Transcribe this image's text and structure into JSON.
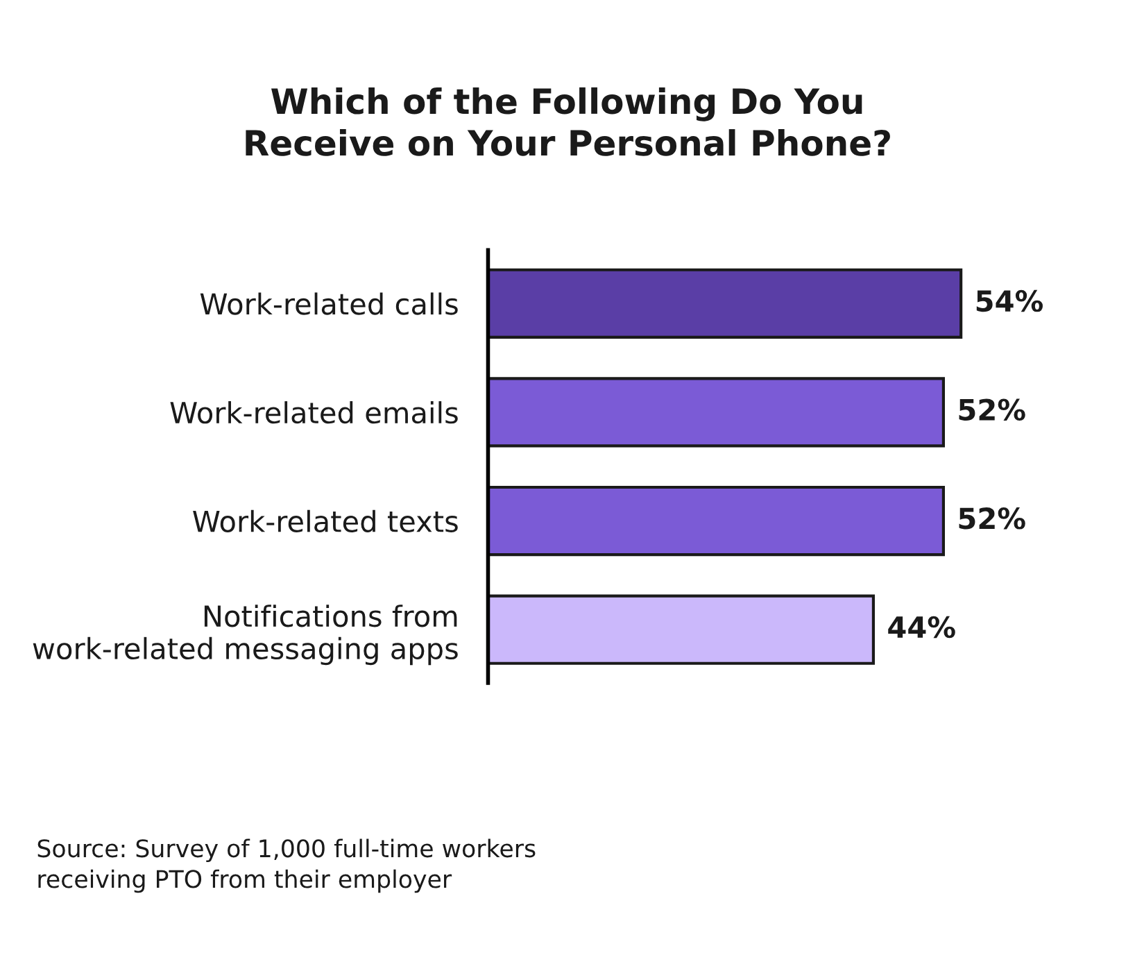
{
  "chart_data": {
    "type": "bar",
    "orientation": "horizontal",
    "title": "Which of the Following Do You\nReceive on Your Personal Phone?",
    "categories": [
      "Work-related calls",
      "Work-related emails",
      "Work-related texts",
      "Notifications from\nwork-related messaging apps"
    ],
    "values": [
      54,
      52,
      52,
      44
    ],
    "colors": [
      "#5a3ea6",
      "#7b5bd6",
      "#7b5bd6",
      "#cbb8fb"
    ],
    "value_labels": [
      "54%",
      "52%",
      "52%",
      "44%"
    ],
    "annotations": [
      "Source: Survey of 1,000 full-time workers\nreceiving PTO from their employer"
    ],
    "grid": false,
    "legend": false
  }
}
